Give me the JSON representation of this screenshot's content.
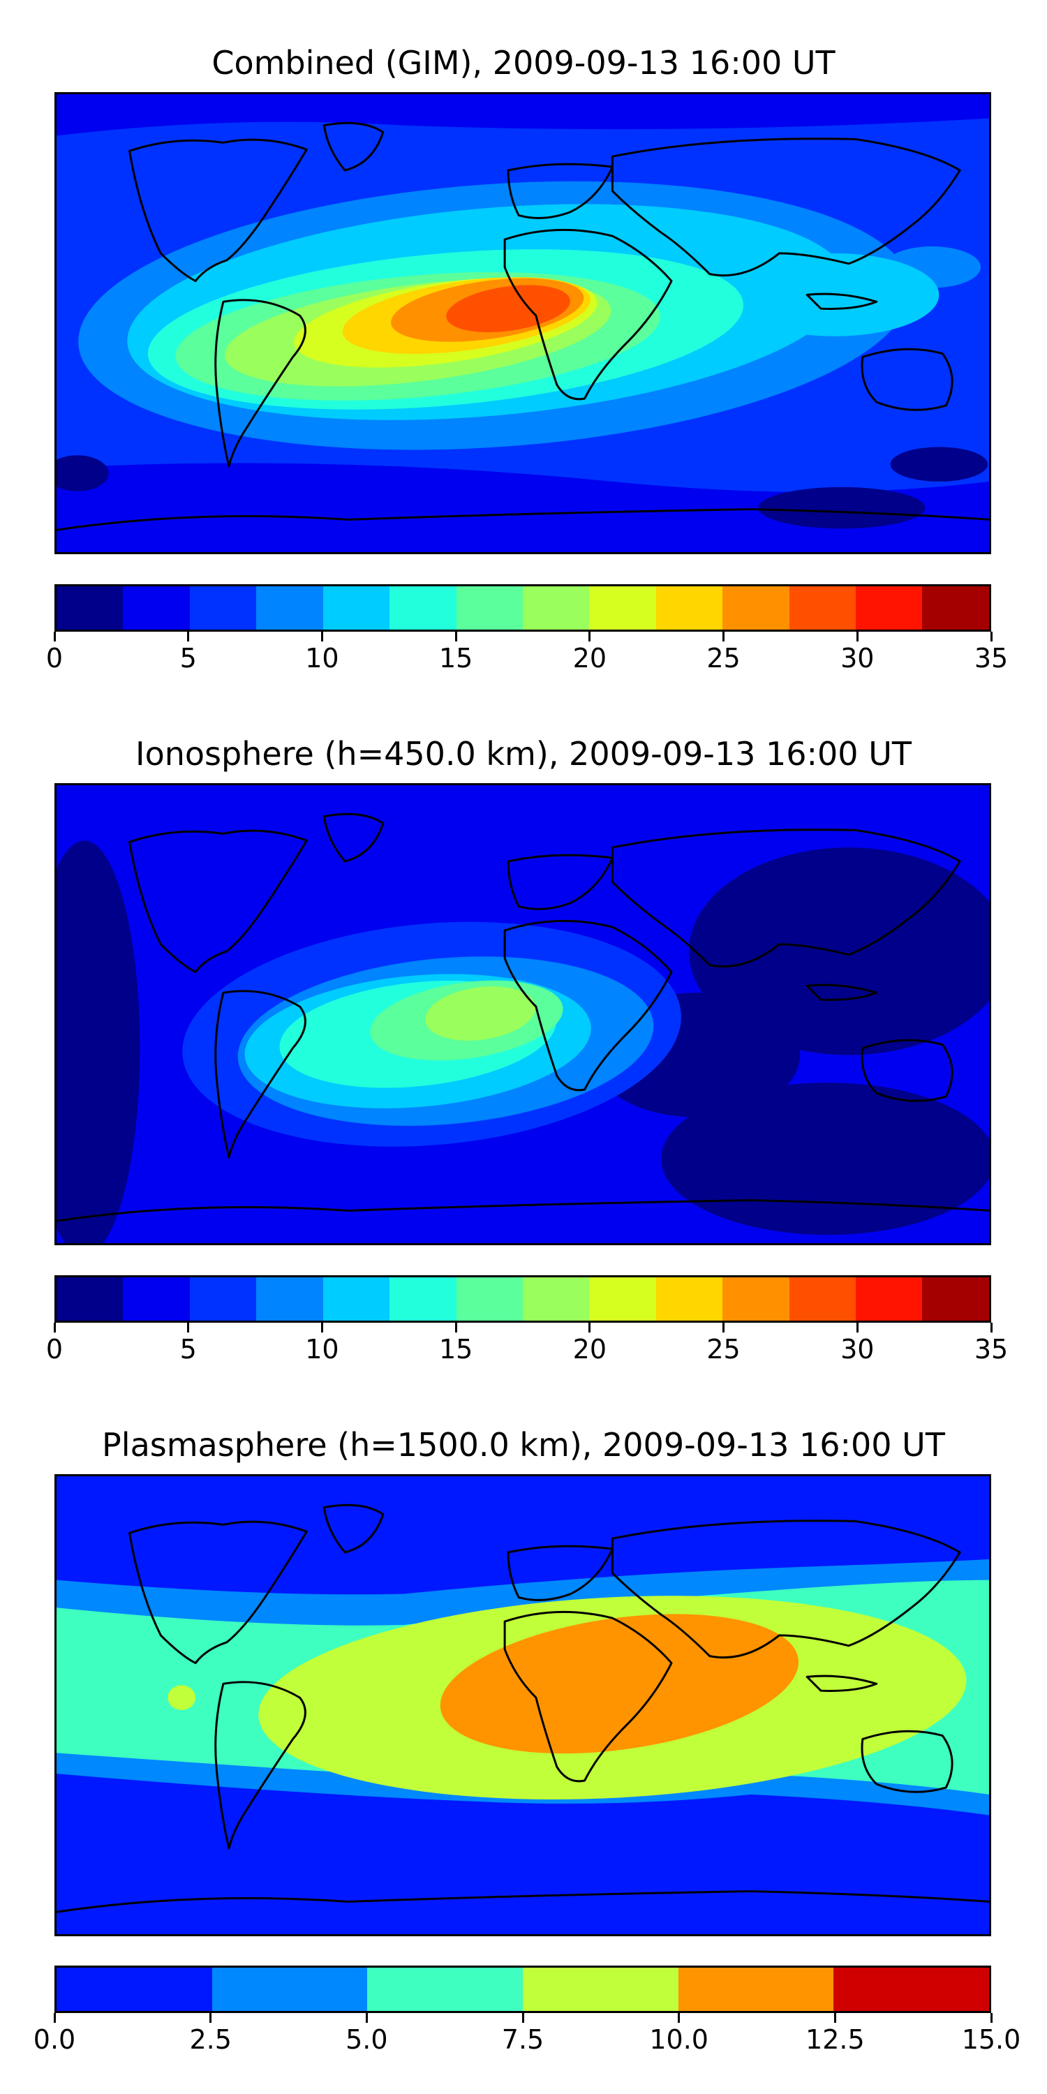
{
  "panels": [
    {
      "title": "Combined (GIM), 2009-09-13 16:00 UT",
      "field": "combined",
      "colorbar": {
        "colors": [
          "#00008a",
          "#0000f0",
          "#0032ff",
          "#0084ff",
          "#00ccff",
          "#22ffdd",
          "#5bff9c",
          "#9aff5c",
          "#d6ff20",
          "#ffd600",
          "#ff9000",
          "#ff5000",
          "#ff1400",
          "#a40000"
        ],
        "ticks": [
          "0",
          "5",
          "10",
          "15",
          "20",
          "25",
          "30",
          "35"
        ]
      }
    },
    {
      "title": "Ionosphere  (h=450.0 km), 2009-09-13 16:00 UT",
      "field": "ionosphere",
      "colorbar": {
        "colors": [
          "#00008a",
          "#0000f0",
          "#0032ff",
          "#0084ff",
          "#00ccff",
          "#22ffdd",
          "#5bff9c",
          "#9aff5c",
          "#d6ff20",
          "#ffd600",
          "#ff9000",
          "#ff5000",
          "#ff1400",
          "#a40000"
        ],
        "ticks": [
          "0",
          "5",
          "10",
          "15",
          "20",
          "25",
          "30",
          "35"
        ]
      }
    },
    {
      "title": "Plasmasphere (h=1500.0 km), 2009-09-13 16:00 UT",
      "field": "plasmasphere",
      "colorbar": {
        "colors": [
          "#0018ff",
          "#0088ff",
          "#3effc0",
          "#c0ff3a",
          "#ff9400",
          "#d00000"
        ],
        "ticks": [
          "0.0",
          "2.5",
          "5.0",
          "7.5",
          "10.0",
          "12.5",
          "15.0"
        ]
      }
    }
  ]
}
